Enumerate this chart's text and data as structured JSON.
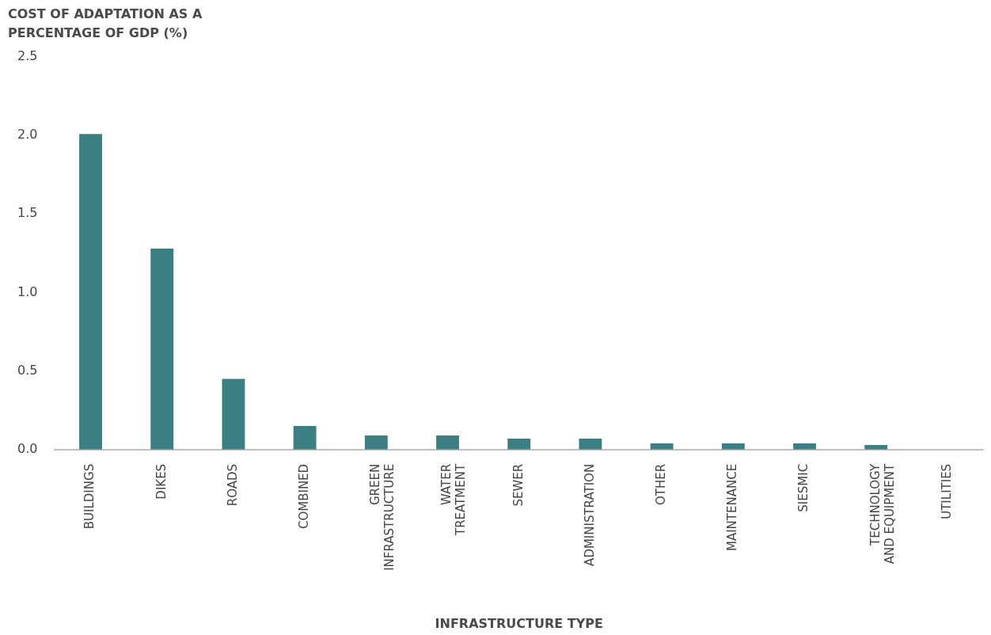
{
  "chart_data": {
    "type": "bar",
    "title": "COST OF ADAPTATION AS A PERCENTAGE OF GDP (%)",
    "xlabel": "INFRASTRUCTURE TYPE",
    "categories": [
      "BUILDINGS",
      "DIKES",
      "ROADS",
      "COMBINED",
      "GREEN INFRASTRUCTURE",
      "WATER TREATMENT",
      "SEWER",
      "ADMINISTRATION",
      "OTHER",
      "MAINTENANCE",
      "SIESMIC",
      "TECHNOLOGY AND EQUIPMENT",
      "UTILITIES"
    ],
    "values": [
      2.01,
      1.28,
      0.45,
      0.15,
      0.09,
      0.09,
      0.07,
      0.07,
      0.04,
      0.04,
      0.04,
      0.03,
      0
    ],
    "color": "#3b7f82",
    "ylim": [
      0,
      2.5
    ],
    "yticks": [
      {
        "value": 0,
        "label": "0.0"
      },
      {
        "value": 0.5,
        "label": "0.5"
      },
      {
        "value": 1,
        "label": "1.0"
      },
      {
        "value": 1.5,
        "label": "1.5"
      },
      {
        "value": 2,
        "label": "2.0"
      },
      {
        "value": 2.5,
        "label": "2.5"
      }
    ],
    "grid": false,
    "legend": false
  }
}
